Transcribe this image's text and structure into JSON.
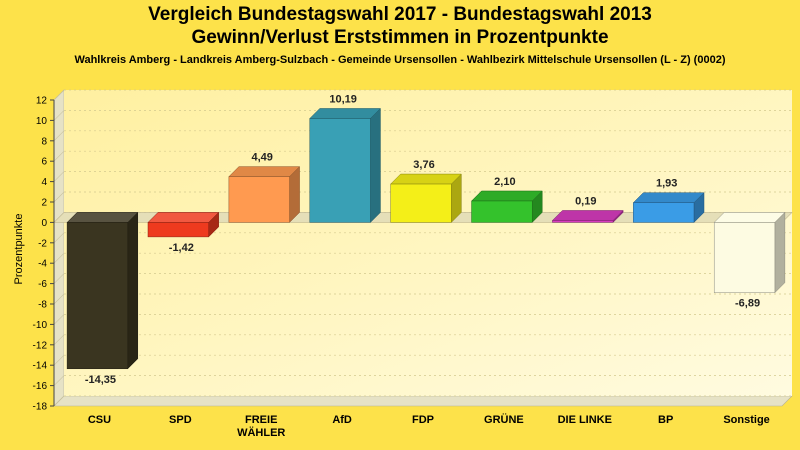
{
  "titles": {
    "title": "Vergleich Bundestagswahl 2017 - Bundestagswahl 2013",
    "subtitle_line": "Gewinn/Verlust Erststimmen in Prozentpunkte",
    "caption": "Wahlkreis Amberg - Landkreis Amberg-Sulzbach - Gemeinde Ursensollen - Wahlbezirk Mittelschule Ursensollen (L - Z) (0002)"
  },
  "chart_data": {
    "type": "bar",
    "title": "Vergleich Bundestagswahl 2017 - Bundestagswahl 2013",
    "subtitle": "Gewinn/Verlust Erststimmen in Prozentpunkte",
    "ylabel": "Prozentpunkte",
    "xlabel": "",
    "ylim": [
      -18,
      12
    ],
    "yticks": [
      "12",
      "10",
      "8",
      "6",
      "4",
      "2",
      "0",
      "-2",
      "-4",
      "-6",
      "-8",
      "-10",
      "-12",
      "-14",
      "-16",
      "-18"
    ],
    "grid": true,
    "categories": [
      "CSU",
      "SPD",
      "FREIE WÄHLER",
      "AfD",
      "FDP",
      "GRÜNE",
      "DIE LINKE",
      "BP",
      "Sonstige"
    ],
    "category_lines": [
      [
        "CSU"
      ],
      [
        "SPD"
      ],
      [
        "FREIE",
        "WÄHLER"
      ],
      [
        "AfD"
      ],
      [
        "FDP"
      ],
      [
        "GRÜNE"
      ],
      [
        "DIE LINKE"
      ],
      [
        "BP"
      ],
      [
        "Sonstige"
      ]
    ],
    "values": [
      -14.35,
      -1.42,
      4.49,
      10.19,
      3.76,
      2.1,
      0.19,
      1.93,
      -6.89
    ],
    "value_labels": [
      "-14,35",
      "-1,42",
      "4,49",
      "10,19",
      "3,76",
      "2,10",
      "0,19",
      "1,93",
      "-6,89"
    ],
    "colors": [
      "#3a3520",
      "#ee3a1e",
      "#ff9a50",
      "#39a0b5",
      "#f4ef18",
      "#34c22c",
      "#d83cbf",
      "#3a9ce6",
      "#fdfbe2"
    ]
  }
}
